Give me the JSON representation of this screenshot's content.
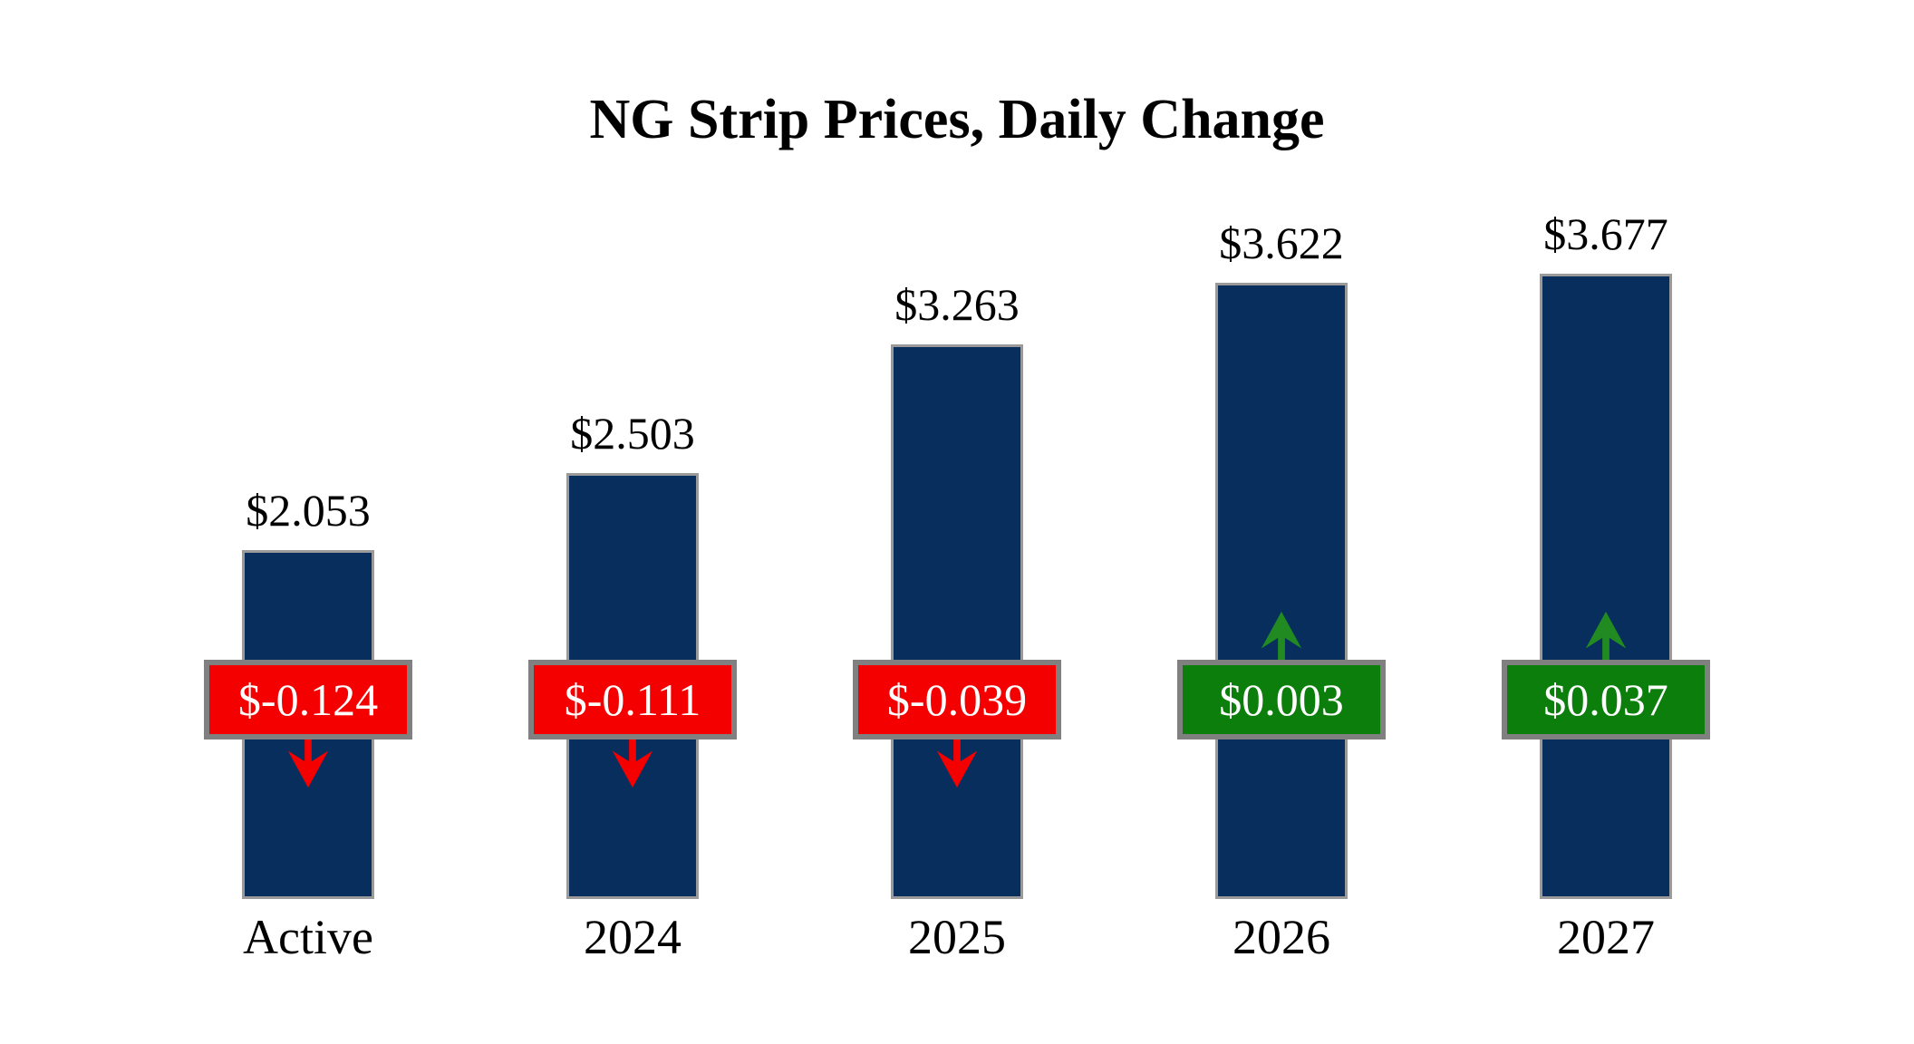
{
  "title": "NG Strip Prices, Daily Change",
  "colors": {
    "background": "#FFFFFF",
    "bar": "#082E5E",
    "bar_border": "#9A9A9A",
    "box_border": "#808080",
    "negative": "#F40000",
    "positive": "#0B7E0B",
    "positive_arrow": "#218A21",
    "label_text": "#000000",
    "box_text": "#FFFFFF"
  },
  "chart_data": {
    "type": "bar",
    "title": "NG Strip Prices, Daily Change",
    "categories": [
      "Active",
      "2024",
      "2025",
      "2026",
      "2027"
    ],
    "series": [
      {
        "name": "Strip Price",
        "values": [
          2.053,
          2.503,
          3.263,
          3.622,
          3.677
        ],
        "labels": [
          "$2.053",
          "$2.503",
          "$3.263",
          "$3.622",
          "$3.677"
        ]
      },
      {
        "name": "Daily Change",
        "values": [
          -0.124,
          -0.111,
          -0.039,
          0.003,
          0.037
        ],
        "labels": [
          "$-0.124",
          "$-0.111",
          "$-0.039",
          "$0.003",
          "$0.037"
        ],
        "directions": [
          "down",
          "down",
          "down",
          "up",
          "up"
        ]
      }
    ],
    "xlabel": "",
    "ylabel": "",
    "ylim": [
      0,
      3.677
    ],
    "grid": false,
    "legend": false,
    "axes": "none",
    "annotation_style": "change badges centered mid-chart with up/down arrows"
  }
}
